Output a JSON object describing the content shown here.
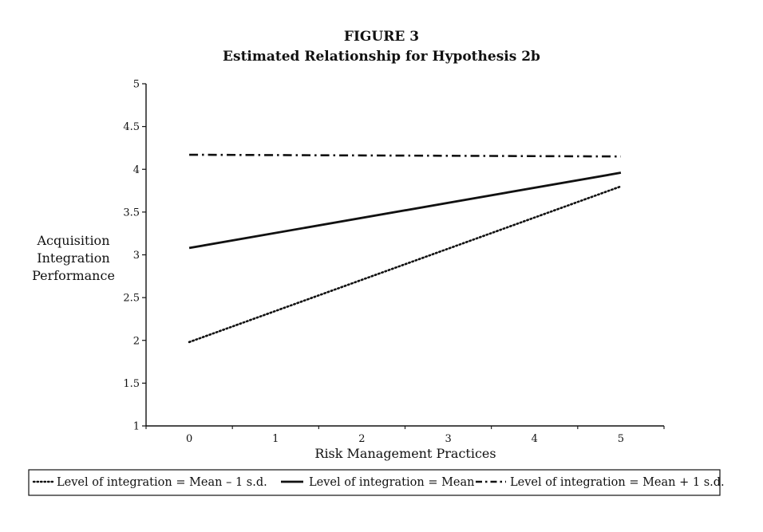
{
  "chart_data": {
    "type": "line",
    "title": "FIGURE 3",
    "subtitle": "Estimated Relationship for Hypothesis 2b",
    "xlabel": "Risk Management Practices",
    "ylabel_lines": [
      "Acquisition",
      "Integration",
      "Performance"
    ],
    "xlim": [
      -0.5,
      5.5
    ],
    "ylim": [
      1,
      5
    ],
    "x_ticks": [
      0,
      1,
      2,
      3,
      4,
      5
    ],
    "y_ticks": [
      1,
      1.5,
      2,
      2.5,
      3,
      3.5,
      4,
      4.5,
      5
    ],
    "y_tick_labels": [
      "1",
      "1.5",
      "2",
      "2.5",
      "3",
      "3.5",
      "4",
      "4.5",
      "5"
    ],
    "grid": false,
    "legend_position": "bottom",
    "series": [
      {
        "name": "Level of integration = Mean – 1 s.d.",
        "style": "dotted",
        "x": [
          0,
          5
        ],
        "y": [
          1.98,
          3.8
        ]
      },
      {
        "name": "Level of integration = Mean",
        "style": "solid",
        "x": [
          0,
          5
        ],
        "y": [
          3.08,
          3.96
        ]
      },
      {
        "name": "Level of integration = Mean + 1 s.d.",
        "style": "dashdot",
        "x": [
          0,
          5
        ],
        "y": [
          4.17,
          4.15
        ]
      }
    ]
  },
  "colors": {
    "ink": "#111111",
    "background": "#ffffff"
  }
}
